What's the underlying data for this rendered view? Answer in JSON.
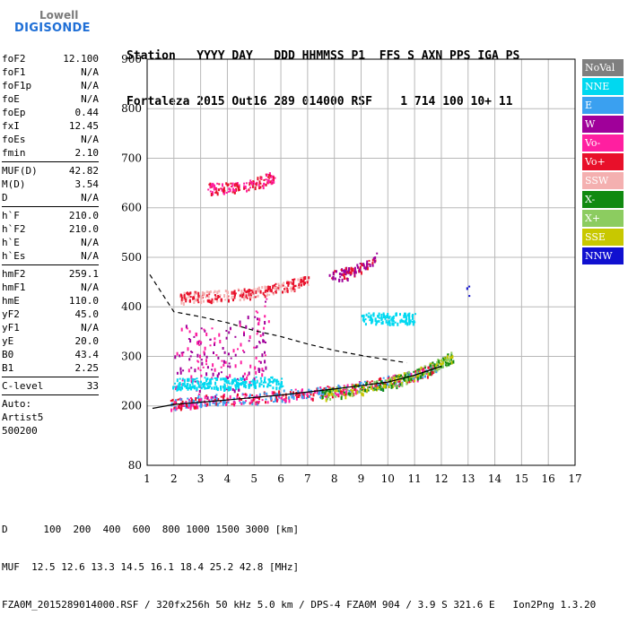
{
  "logo": {
    "line1": "Lowell",
    "line2": "DIGISONDE"
  },
  "header": {
    "line1": "Station   YYYY DAY   DDD HHMMSS P1  FFS S AXN PPS IGA PS",
    "line2": "Fortaleza 2015 Out16 289 014000 RSF    1 714 100 10+ 11"
  },
  "params": {
    "groups": [
      [
        {
          "label": "foF2",
          "value": "12.100"
        },
        {
          "label": "foF1",
          "value": "N/A"
        },
        {
          "label": "foF1p",
          "value": "N/A"
        },
        {
          "label": "foE",
          "value": "N/A"
        },
        {
          "label": "foEp",
          "value": "0.44"
        },
        {
          "label": "fxI",
          "value": "12.45"
        },
        {
          "label": "foEs",
          "value": "N/A"
        },
        {
          "label": "fmin",
          "value": "2.10"
        }
      ],
      [
        {
          "label": "MUF(D)",
          "value": "42.82"
        },
        {
          "label": "M(D)",
          "value": "3.54"
        },
        {
          "label": "D",
          "value": "N/A"
        }
      ],
      [
        {
          "label": "h`F",
          "value": "210.0"
        },
        {
          "label": "h`F2",
          "value": "210.0"
        },
        {
          "label": "h`E",
          "value": "N/A"
        },
        {
          "label": "h`Es",
          "value": "N/A"
        }
      ],
      [
        {
          "label": "hmF2",
          "value": "259.1"
        },
        {
          "label": "hmF1",
          "value": "N/A"
        },
        {
          "label": "hmE",
          "value": "110.0"
        },
        {
          "label": "yF2",
          "value": "45.0"
        },
        {
          "label": "yF1",
          "value": "N/A"
        },
        {
          "label": "yE",
          "value": "20.0"
        },
        {
          "label": "B0",
          "value": "43.4"
        },
        {
          "label": "B1",
          "value": "2.25"
        }
      ],
      [
        {
          "label": "C-level",
          "value": "33"
        }
      ]
    ],
    "autoscaling": [
      "Auto:",
      "Artist5",
      "500200"
    ]
  },
  "legend": [
    {
      "label": "NoVal",
      "color": "#7f7f7f"
    },
    {
      "label": "NNE",
      "color": "#00d8f0"
    },
    {
      "label": "E",
      "color": "#3aa0f0"
    },
    {
      "label": "W",
      "color": "#a0009a"
    },
    {
      "label": "Vo-",
      "color": "#ff1fa0"
    },
    {
      "label": "Vo+",
      "color": "#e8102a"
    },
    {
      "label": "SSW",
      "color": "#f4b0b0"
    },
    {
      "label": "X-",
      "color": "#108a10"
    },
    {
      "label": "X+",
      "color": "#8ccc60"
    },
    {
      "label": "SSE",
      "color": "#c8c800"
    },
    {
      "label": "NNW",
      "color": "#1010d0"
    }
  ],
  "footer": {
    "line1": "D      100  200  400  600  800 1000 1500 3000 [km]",
    "line2": "MUF  12.5 12.6 13.3 14.5 16.1 18.4 25.2 42.8 [MHz]",
    "line3": "FZA0M_2015289014000.RSF / 320fx256h 50 kHz 5.0 km / DPS-4 FZA0M 904 / 3.9 S 321.6 E   Ion2Png 1.3.20"
  },
  "chart_data": {
    "type": "scatter",
    "title": "",
    "xlabel": "",
    "ylabel": "",
    "xlim": [
      1,
      17
    ],
    "ylim": [
      80,
      900
    ],
    "x_ticks": [
      1,
      2,
      3,
      4,
      5,
      6,
      7,
      8,
      9,
      10,
      11,
      12,
      13,
      14,
      15,
      16,
      17
    ],
    "y_ticks": [
      80,
      200,
      300,
      400,
      500,
      600,
      700,
      800,
      900
    ],
    "grid": true,
    "legend_position": "right",
    "clusters": [
      {
        "name": "F2 O-trace",
        "colors": [
          "#e8102a",
          "#ff1fa0",
          "#3aa0f0"
        ],
        "x": [
          1.9,
          2.5,
          3.0,
          4.0,
          5.0,
          6.0,
          7.0,
          8.0,
          9.0,
          10.0,
          11.0,
          11.8
        ],
        "y": [
          205,
          208,
          212,
          215,
          218,
          222,
          226,
          232,
          240,
          250,
          262,
          280
        ]
      },
      {
        "name": "F2 X-trace",
        "colors": [
          "#108a10",
          "#8ccc60",
          "#c8c800"
        ],
        "x": [
          7.5,
          8.0,
          9.0,
          10.0,
          10.5,
          11.0,
          11.5,
          12.0,
          12.4
        ],
        "y": [
          225,
          228,
          236,
          246,
          255,
          265,
          275,
          290,
          300
        ]
      },
      {
        "name": "Multihop 400",
        "colors": [
          "#e8102a",
          "#f4b0b0"
        ],
        "x": [
          2.2,
          3.0,
          4.0,
          5.0,
          6.0,
          7.0
        ],
        "y": [
          420,
          422,
          425,
          430,
          440,
          455
        ]
      },
      {
        "name": "Multihop 460-520",
        "colors": [
          "#e8102a",
          "#a0009a"
        ],
        "x": [
          7.8,
          8.5,
          9.0,
          9.5
        ],
        "y": [
          462,
          470,
          480,
          500
        ]
      },
      {
        "name": "Multihop 650",
        "colors": [
          "#e8102a",
          "#ff1fa0"
        ],
        "x": [
          3.3,
          4.0,
          4.8,
          5.3,
          5.7
        ],
        "y": [
          640,
          642,
          648,
          655,
          665
        ]
      },
      {
        "name": "Spread",
        "colors": [
          "#a0009a",
          "#ff1fa0"
        ],
        "x": [
          2.0,
          3.0,
          4.0,
          5.0,
          5.5
        ],
        "y": [
          300,
          290,
          285,
          320,
          360
        ]
      },
      {
        "name": "NNE 250",
        "colors": [
          "#00d8f0"
        ],
        "x": [
          2.0,
          3.0,
          4.0,
          5.0,
          6.0
        ],
        "y": [
          245,
          248,
          246,
          250,
          248
        ]
      },
      {
        "name": "NNE 380",
        "colors": [
          "#00d8f0"
        ],
        "x": [
          9.0,
          9.5,
          10.0,
          10.5,
          11.0
        ],
        "y": [
          378,
          378,
          378,
          378,
          378
        ]
      },
      {
        "name": "NNW",
        "colors": [
          "#1010d0"
        ],
        "x": [
          13.0
        ],
        "y": [
          432
        ]
      }
    ],
    "curves": [
      {
        "name": "true height profile",
        "style": "solid",
        "x": [
          1.2,
          2.0,
          4.0,
          6.0,
          8.0,
          10.0,
          11.0,
          12.0
        ],
        "y": [
          195,
          203,
          212,
          222,
          234,
          248,
          262,
          280
        ]
      },
      {
        "name": "MUF curve",
        "style": "dashed",
        "x": [
          1.1,
          2.0,
          3.0,
          4.0,
          5.0,
          6.0,
          7.0,
          8.0,
          9.0,
          10.0,
          10.7
        ],
        "y": [
          465,
          390,
          380,
          368,
          352,
          340,
          325,
          312,
          302,
          293,
          287
        ]
      }
    ]
  }
}
